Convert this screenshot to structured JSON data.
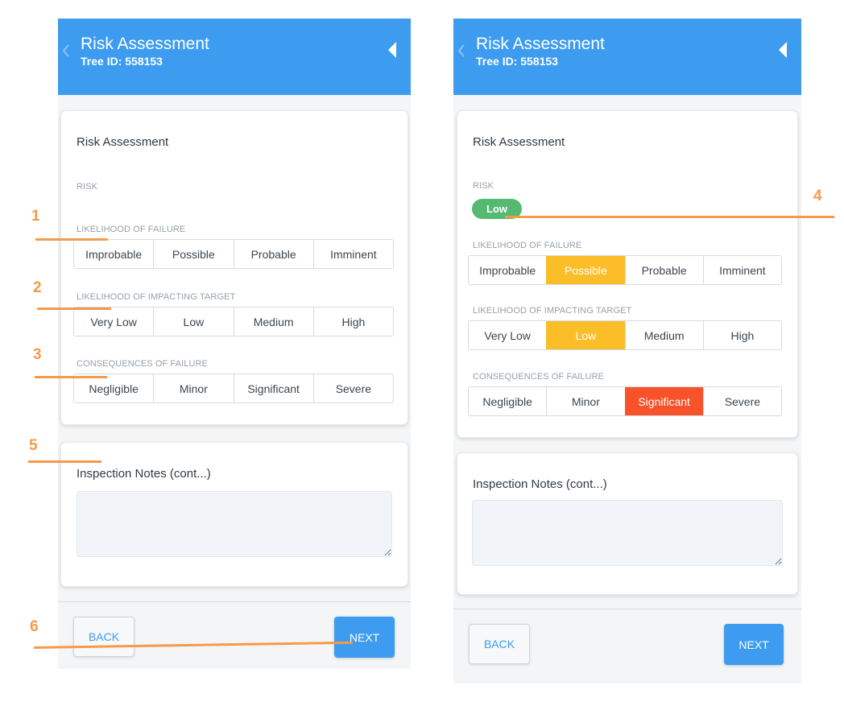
{
  "header": {
    "title": "Risk Assessment",
    "tree_id": "Tree ID: 558153"
  },
  "card": {
    "title": "Risk Assessment",
    "risk_label": "RISK",
    "risk_value": "Low",
    "groups": [
      {
        "label": "LIKELIHOOD OF FAILURE",
        "options": [
          "Improbable",
          "Possible",
          "Probable",
          "Imminent"
        ]
      },
      {
        "label": "LIKELIHOOD OF IMPACTING TARGET",
        "options": [
          "Very Low",
          "Low",
          "Medium",
          "High"
        ]
      },
      {
        "label": "CONSEQUENCES OF FAILURE",
        "options": [
          "Negligible",
          "Minor",
          "Significant",
          "Severe"
        ]
      }
    ]
  },
  "notes": {
    "title": "Inspection Notes (cont...)"
  },
  "footer": {
    "back_label": "BACK",
    "next_label": "NEXT"
  },
  "callouts": [
    "1",
    "2",
    "3",
    "4",
    "5",
    "6"
  ],
  "colors": {
    "header": "#3d9cf0",
    "selected_yellow": "#fbbd28",
    "selected_red": "#f7522a",
    "risk_badge": "#54ba71",
    "callout": "#f59a4a"
  }
}
